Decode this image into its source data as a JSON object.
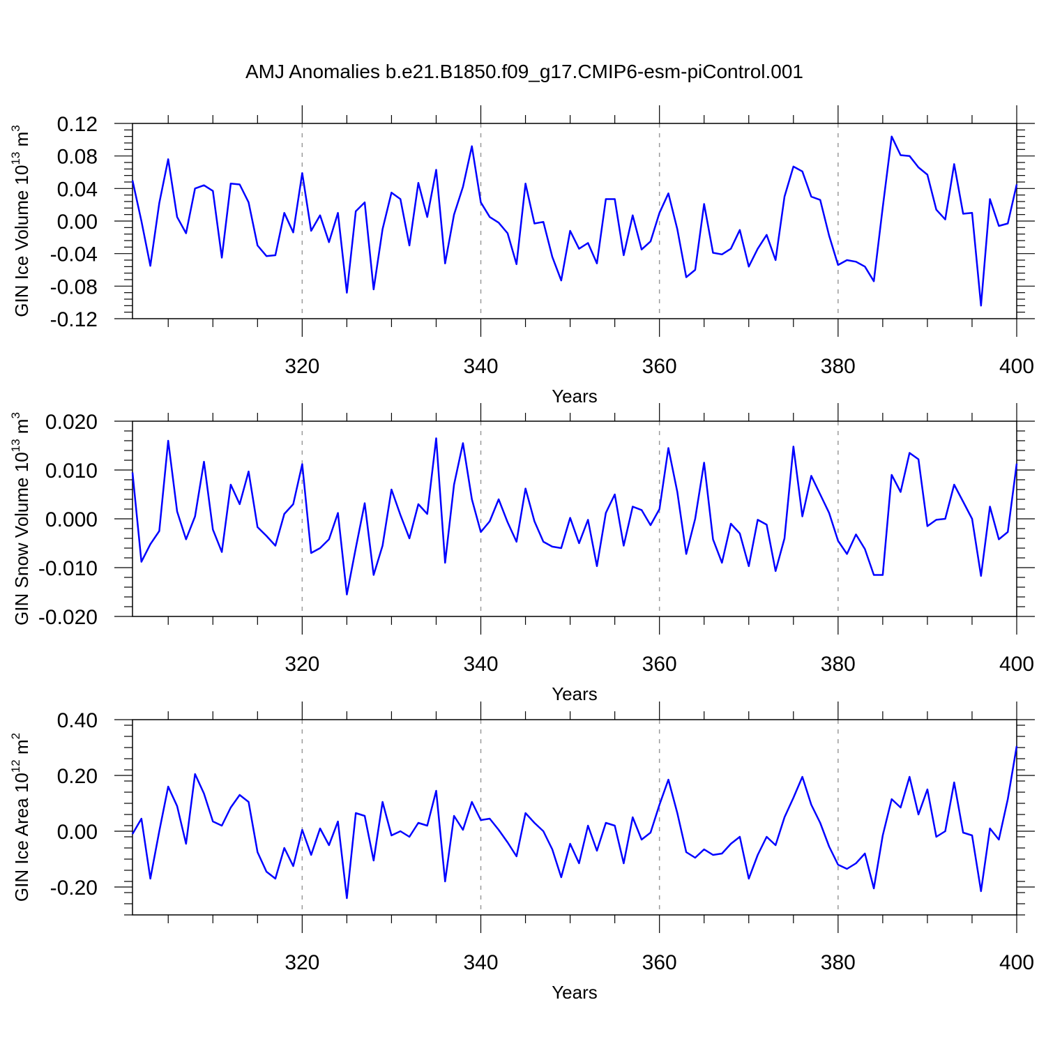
{
  "chart_data": {
    "type": "line",
    "title": "AMJ Anomalies b.e21.B1850.f09_g17.CMIP6-esm-piControl.001",
    "line_color": "#0000ff",
    "xlabel": "Years",
    "xlim": [
      301,
      400
    ],
    "x_tick_values": [
      320,
      340,
      360,
      380,
      400
    ],
    "x_tick_labels": [
      "320",
      "340",
      "360",
      "380",
      "400"
    ],
    "x": [
      301,
      302,
      303,
      304,
      305,
      306,
      307,
      308,
      309,
      310,
      311,
      312,
      313,
      314,
      315,
      316,
      317,
      318,
      319,
      320,
      321,
      322,
      323,
      324,
      325,
      326,
      327,
      328,
      329,
      330,
      331,
      332,
      333,
      334,
      335,
      336,
      337,
      338,
      339,
      340,
      341,
      342,
      343,
      344,
      345,
      346,
      347,
      348,
      349,
      350,
      351,
      352,
      353,
      354,
      355,
      356,
      357,
      358,
      359,
      360,
      361,
      362,
      363,
      364,
      365,
      366,
      367,
      368,
      369,
      370,
      371,
      372,
      373,
      374,
      375,
      376,
      377,
      378,
      379,
      380,
      381,
      382,
      383,
      384,
      385,
      386,
      387,
      388,
      389,
      390,
      391,
      392,
      393,
      394,
      395,
      396,
      397,
      398,
      399,
      400
    ],
    "panels": [
      {
        "ylabel": "GIN Ice Volume 10",
        "ylabel_exp": "13",
        "ylabel_unit": " m",
        "ylabel_unit_exp": "3",
        "ylim": [
          -0.12,
          0.12
        ],
        "y_tick_values": [
          0.12,
          0.08,
          0.04,
          0.0,
          -0.04,
          -0.08,
          -0.12
        ],
        "y_tick_labels": [
          "0.12",
          "0.08",
          "0.04",
          "0.00",
          "-0.04",
          "-0.08",
          "-0.12"
        ],
        "values": [
          0.05,
          0.0,
          -0.055,
          0.022,
          0.076,
          0.005,
          -0.015,
          0.04,
          0.044,
          0.037,
          -0.045,
          0.046,
          0.045,
          0.023,
          -0.03,
          -0.043,
          -0.042,
          0.01,
          -0.014,
          0.059,
          -0.012,
          0.007,
          -0.026,
          0.01,
          -0.088,
          0.012,
          0.023,
          -0.084,
          -0.01,
          0.035,
          0.027,
          -0.03,
          0.047,
          0.005,
          0.063,
          -0.052,
          0.008,
          0.042,
          0.092,
          0.023,
          0.005,
          -0.002,
          -0.015,
          -0.053,
          0.046,
          -0.003,
          -0.001,
          -0.044,
          -0.073,
          -0.012,
          -0.034,
          -0.027,
          -0.052,
          0.027,
          0.027,
          -0.042,
          0.007,
          -0.035,
          -0.025,
          0.01,
          0.034,
          -0.01,
          -0.069,
          -0.06,
          0.021,
          -0.039,
          -0.041,
          -0.034,
          -0.011,
          -0.056,
          -0.034,
          -0.017,
          -0.048,
          0.03,
          0.067,
          0.061,
          0.03,
          0.026,
          -0.018,
          -0.054,
          -0.048,
          -0.05,
          -0.056,
          -0.074,
          0.017,
          0.104,
          0.081,
          0.08,
          0.066,
          0.057,
          0.014,
          0.002,
          0.07,
          0.009,
          0.01,
          -0.104,
          0.027,
          -0.006,
          -0.003,
          0.045
        ]
      },
      {
        "ylabel": "GIN Snow Volume 10",
        "ylabel_exp": "13",
        "ylabel_unit": " m",
        "ylabel_unit_exp": "3",
        "ylim": [
          -0.02,
          0.02
        ],
        "y_tick_values": [
          0.02,
          0.01,
          0.0,
          -0.01,
          -0.02
        ],
        "y_tick_labels": [
          "0.020",
          "0.010",
          "0.000",
          "-0.010",
          "-0.020"
        ],
        "values": [
          0.0095,
          -0.0088,
          -0.0052,
          -0.0025,
          0.016,
          0.0015,
          -0.0042,
          0.0005,
          0.0117,
          -0.0022,
          -0.0068,
          0.007,
          0.003,
          0.0097,
          -0.0017,
          -0.0035,
          -0.0055,
          0.001,
          0.003,
          0.0112,
          -0.007,
          -0.006,
          -0.0042,
          0.0012,
          -0.0155,
          -0.006,
          0.0032,
          -0.0115,
          -0.0055,
          0.006,
          0.0008,
          -0.004,
          0.003,
          0.001,
          0.0165,
          -0.009,
          0.007,
          0.0155,
          0.004,
          -0.0027,
          -0.0005,
          0.004,
          -0.0007,
          -0.0047,
          0.0062,
          -0.0005,
          -0.0047,
          -0.0057,
          -0.006,
          0.0002,
          -0.005,
          -0.0002,
          -0.0097,
          0.0012,
          0.005,
          -0.0055,
          0.0025,
          0.0018,
          -0.0013,
          0.002,
          0.0145,
          0.0055,
          -0.0072,
          0.0,
          0.0115,
          -0.0042,
          -0.009,
          -0.001,
          -0.003,
          -0.0097,
          -0.0002,
          -0.0012,
          -0.0107,
          -0.004,
          0.0148,
          0.0005,
          0.0088,
          0.005,
          0.0012,
          -0.0045,
          -0.0072,
          -0.0032,
          -0.0062,
          -0.0115,
          -0.0115,
          0.009,
          0.0055,
          0.0135,
          0.0122,
          -0.0015,
          -0.0002,
          0.0,
          0.007,
          0.0035,
          0.0,
          -0.0117,
          0.0025,
          -0.0042,
          -0.0027,
          0.0113
        ]
      },
      {
        "ylabel": "GIN Ice Area 10",
        "ylabel_exp": "12",
        "ylabel_unit": " m",
        "ylabel_unit_exp": "2",
        "ylim": [
          -0.3,
          0.4
        ],
        "y_tick_values": [
          0.4,
          0.2,
          0.0,
          -0.2
        ],
        "y_tick_labels": [
          "0.40",
          "0.20",
          "0.00",
          "-0.20"
        ],
        "values": [
          -0.01,
          0.045,
          -0.17,
          0.0,
          0.16,
          0.09,
          -0.045,
          0.205,
          0.135,
          0.035,
          0.02,
          0.085,
          0.13,
          0.105,
          -0.075,
          -0.145,
          -0.17,
          -0.06,
          -0.125,
          0.005,
          -0.085,
          0.01,
          -0.05,
          0.035,
          -0.24,
          0.065,
          0.055,
          -0.105,
          0.105,
          -0.015,
          0.0,
          -0.02,
          0.03,
          0.02,
          0.145,
          -0.18,
          0.055,
          0.005,
          0.105,
          0.04,
          0.045,
          0.005,
          -0.04,
          -0.09,
          0.065,
          0.03,
          0.0,
          -0.065,
          -0.165,
          -0.045,
          -0.115,
          0.02,
          -0.07,
          0.03,
          0.02,
          -0.115,
          0.05,
          -0.03,
          -0.005,
          0.095,
          0.185,
          0.065,
          -0.075,
          -0.095,
          -0.065,
          -0.085,
          -0.08,
          -0.045,
          -0.02,
          -0.17,
          -0.085,
          -0.02,
          -0.05,
          0.05,
          0.12,
          0.195,
          0.095,
          0.03,
          -0.055,
          -0.12,
          -0.135,
          -0.115,
          -0.08,
          -0.205,
          -0.015,
          0.115,
          0.085,
          0.195,
          0.06,
          0.15,
          -0.02,
          0.0,
          0.175,
          -0.005,
          -0.015,
          -0.215,
          0.01,
          -0.03,
          0.115,
          0.305
        ]
      }
    ]
  }
}
